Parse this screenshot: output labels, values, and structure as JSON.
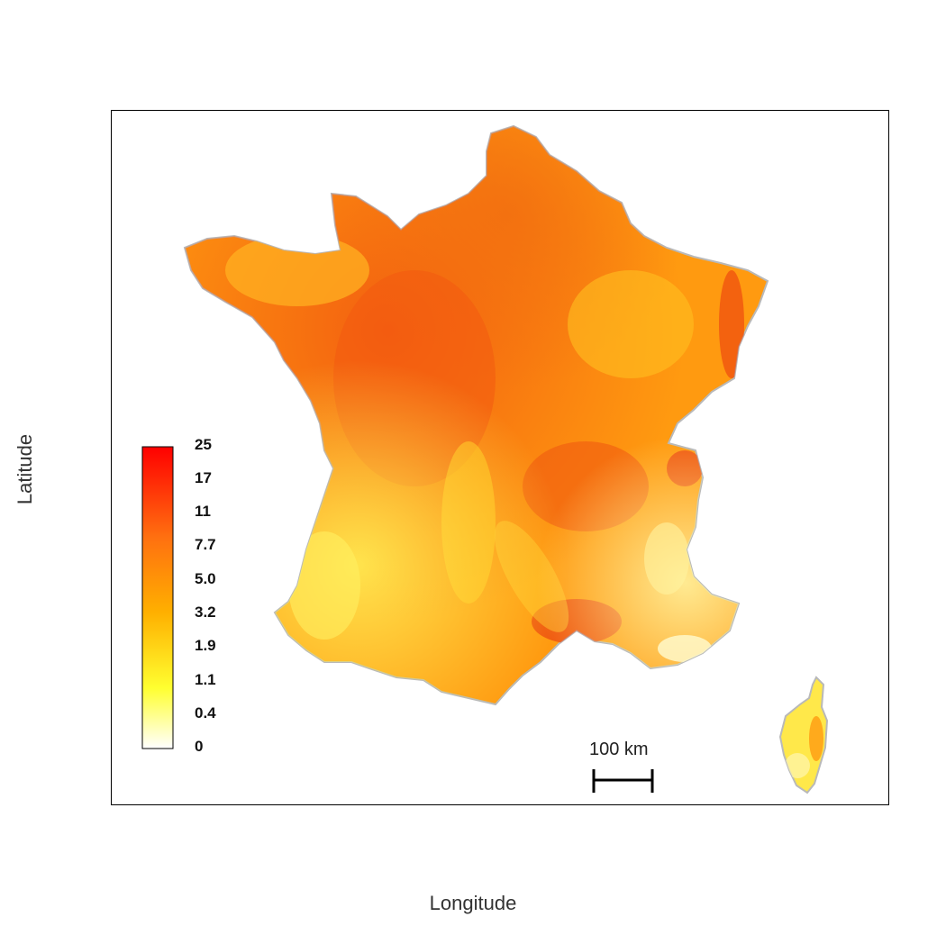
{
  "map": {
    "x_axis_label": "Longitude",
    "y_axis_label": "Latitude",
    "scale_bar_label": "100 km",
    "colors": {
      "low": "#ffffff",
      "yellow": "#ffff00",
      "orange": "#ff9a00",
      "red": "#ff0000",
      "border": "#bbbbbb"
    }
  },
  "legend": {
    "ticks": [
      "25",
      "17",
      "11",
      "7.7",
      "5.0",
      "3.2",
      "1.9",
      "1.1",
      "0.4",
      "0"
    ]
  }
}
